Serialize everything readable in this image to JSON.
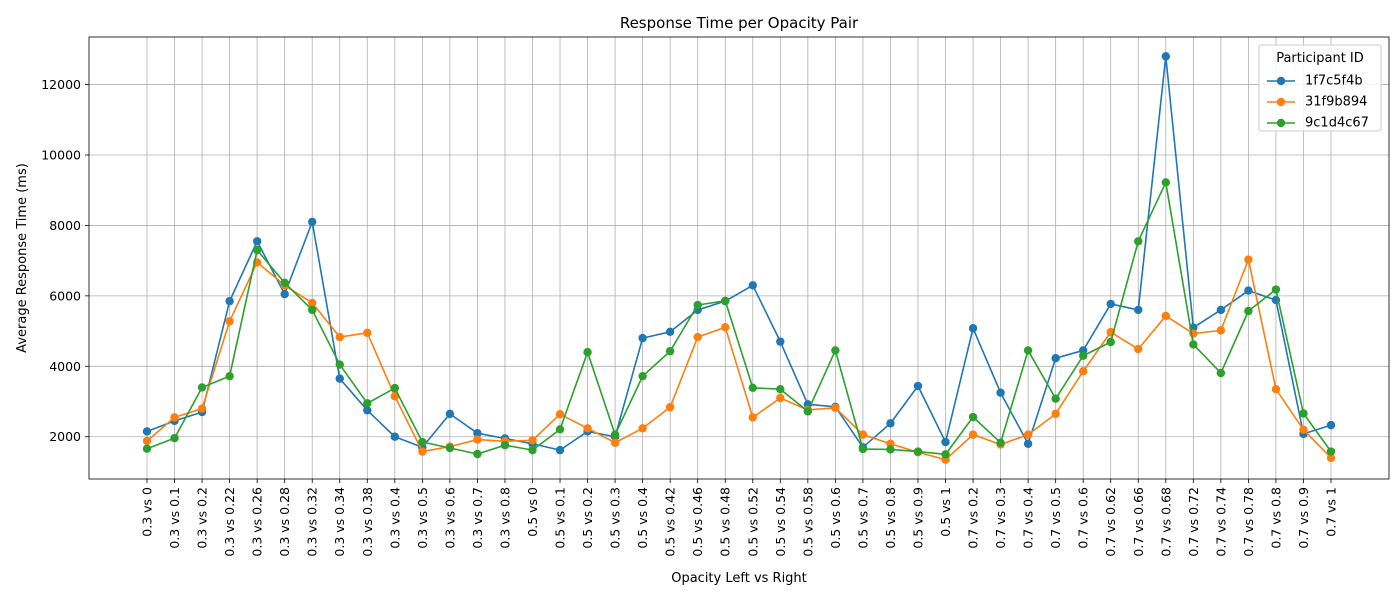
{
  "chart_data": {
    "type": "line",
    "title": "Response Time per Opacity Pair",
    "xlabel": "Opacity Left vs Right",
    "ylabel": "Average Response Time (ms)",
    "ylim": [
      800,
      13350
    ],
    "yticks": [
      2000,
      4000,
      6000,
      8000,
      10000,
      12000
    ],
    "grid": true,
    "legend": {
      "title": "Participant ID",
      "placement": "top-right"
    },
    "categories": [
      "0.3 vs 0",
      "0.3 vs 0.1",
      "0.3 vs 0.2",
      "0.3 vs 0.22",
      "0.3 vs 0.26",
      "0.3 vs 0.28",
      "0.3 vs 0.32",
      "0.3 vs 0.34",
      "0.3 vs 0.38",
      "0.3 vs 0.4",
      "0.3 vs 0.5",
      "0.3 vs 0.6",
      "0.3 vs 0.7",
      "0.3 vs 0.8",
      "0.5 vs 0",
      "0.5 vs 0.1",
      "0.5 vs 0.2",
      "0.5 vs 0.3",
      "0.5 vs 0.4",
      "0.5 vs 0.42",
      "0.5 vs 0.46",
      "0.5 vs 0.48",
      "0.5 vs 0.52",
      "0.5 vs 0.54",
      "0.5 vs 0.58",
      "0.5 vs 0.6",
      "0.5 vs 0.7",
      "0.5 vs 0.8",
      "0.5 vs 0.9",
      "0.5 vs 1",
      "0.7 vs 0.2",
      "0.7 vs 0.3",
      "0.7 vs 0.4",
      "0.7 vs 0.5",
      "0.7 vs 0.6",
      "0.7 vs 0.62",
      "0.7 vs 0.66",
      "0.7 vs 0.68",
      "0.7 vs 0.72",
      "0.7 vs 0.74",
      "0.7 vs 0.78",
      "0.7 vs 0.8",
      "0.7 vs 0.9",
      "0.7 vs 1"
    ],
    "series": [
      {
        "name": "1f7c5f4b",
        "color": "#1f77b4",
        "values": [
          2150,
          2450,
          2700,
          5850,
          7550,
          6050,
          8100,
          3650,
          2750,
          2000,
          1700,
          2650,
          2100,
          1950,
          1800,
          1620,
          2150,
          2000,
          4800,
          4980,
          5600,
          5850,
          6300,
          4700,
          2920,
          2850,
          1700,
          2380,
          3440,
          1850,
          5080,
          3250,
          1800,
          4230,
          4450,
          5770,
          5600,
          12800,
          5100,
          5600,
          6150,
          5880,
          2080,
          2330
        ]
      },
      {
        "name": "31f9b894",
        "color": "#ff7f0e",
        "values": [
          1880,
          2550,
          2800,
          5280,
          6950,
          6300,
          5800,
          4830,
          4950,
          3150,
          1580,
          1720,
          1920,
          1870,
          1900,
          2640,
          2240,
          1830,
          2240,
          2840,
          4830,
          5110,
          2550,
          3100,
          2760,
          2820,
          2060,
          1800,
          1560,
          1350,
          2060,
          1780,
          2060,
          2650,
          3860,
          4970,
          4490,
          5430,
          4930,
          5020,
          7030,
          3350,
          2200,
          1400
        ]
      },
      {
        "name": "9c1d4c67",
        "color": "#2ca02c",
        "values": [
          1660,
          1960,
          3400,
          3720,
          7300,
          6370,
          5600,
          4050,
          2950,
          3380,
          1850,
          1680,
          1510,
          1760,
          1620,
          2210,
          4400,
          2060,
          3720,
          4430,
          5740,
          5860,
          3390,
          3350,
          2720,
          4450,
          1650,
          1640,
          1580,
          1500,
          2560,
          1830,
          4450,
          3080,
          4300,
          4690,
          7550,
          9220,
          4620,
          3810,
          5570,
          6180,
          2660,
          1580
        ]
      }
    ]
  }
}
